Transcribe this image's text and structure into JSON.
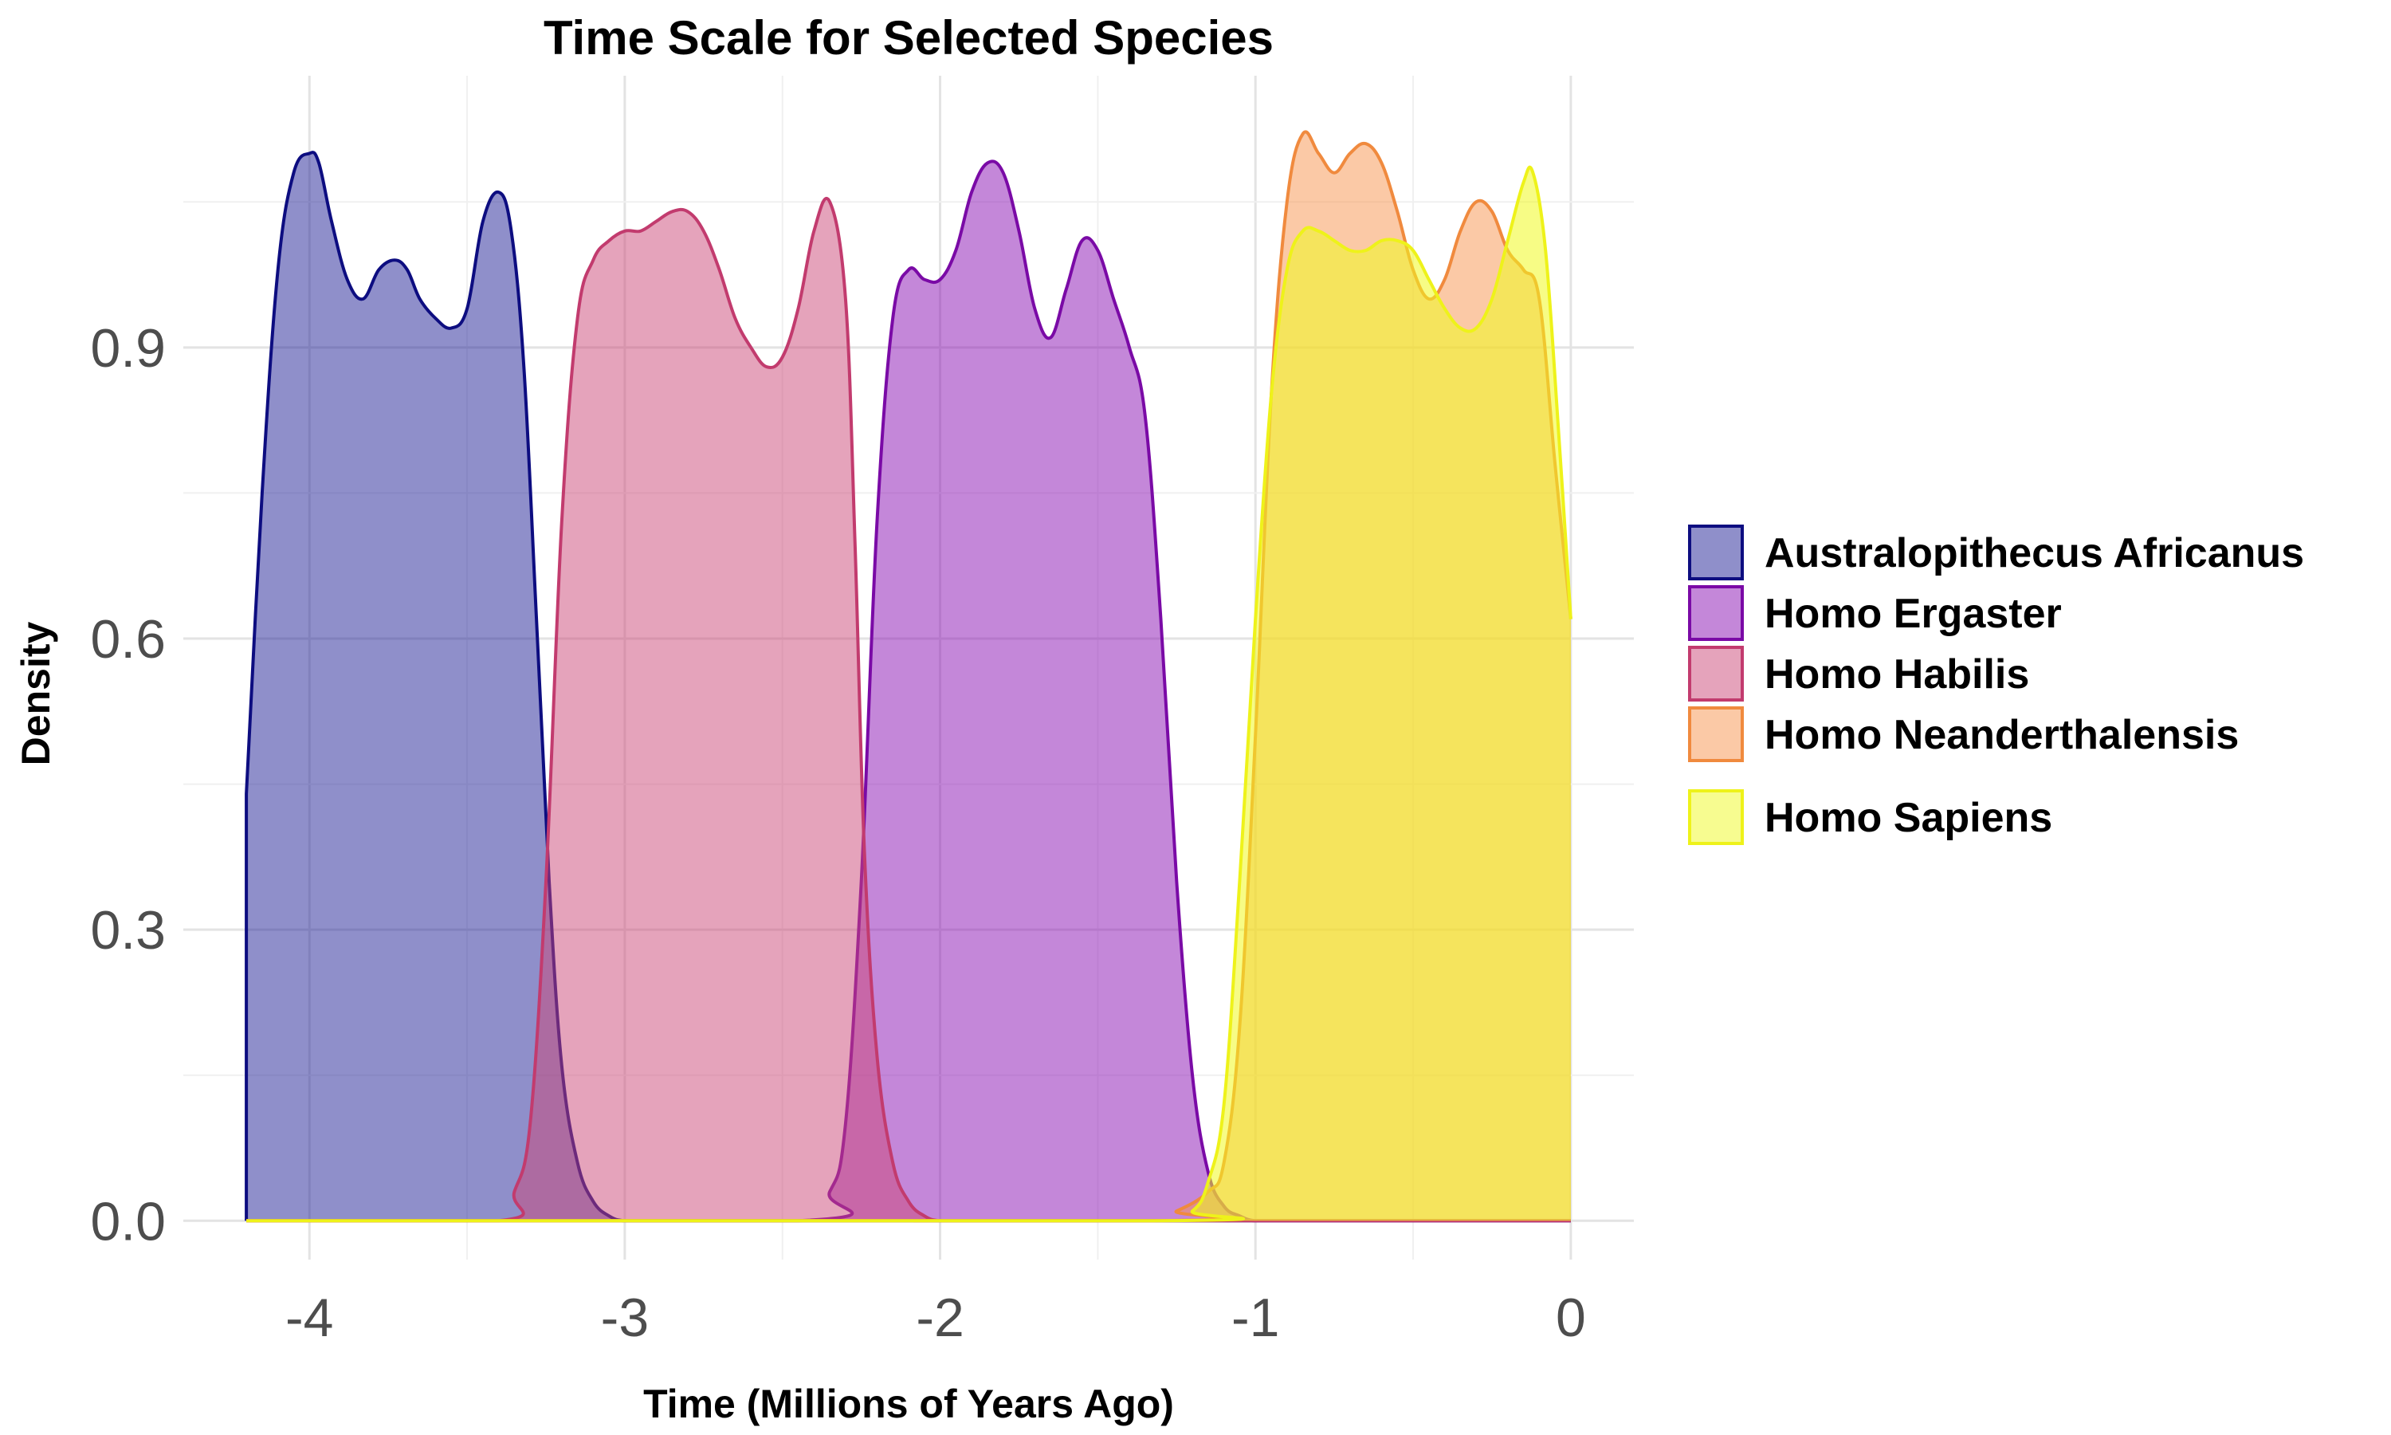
{
  "chart_data": {
    "type": "area",
    "title": "Time Scale for Selected Species",
    "xlabel": "Time (Millions of Years Ago)",
    "ylabel": "Density",
    "xlim": [
      -4.2,
      0
    ],
    "ylim": [
      0,
      1.1
    ],
    "x_ticks": [
      -4,
      -3,
      -2,
      -1,
      0
    ],
    "x_tick_labels": [
      "-4",
      "-3",
      "-2",
      "-1",
      "0"
    ],
    "y_ticks": [
      0.0,
      0.3,
      0.6,
      0.9
    ],
    "y_tick_labels": [
      "0.0",
      "0.3",
      "0.6",
      "0.9"
    ],
    "grid": true,
    "legend_position": "right",
    "series": [
      {
        "name": "Australopithecus Africanus",
        "fill": "#1f1f96",
        "stroke": "#0d0d80",
        "x": [
          -4.2,
          -4.15,
          -4.1,
          -4.05,
          -4.0,
          -3.97,
          -3.93,
          -3.88,
          -3.83,
          -3.78,
          -3.73,
          -3.69,
          -3.65,
          -3.6,
          -3.55,
          -3.5,
          -3.45,
          -3.4,
          -3.36,
          -3.32,
          -3.28,
          -3.24,
          -3.2,
          -3.15,
          -3.1,
          -3.05,
          -3.0,
          -2.9,
          -2.0,
          -1.0,
          0.0
        ],
        "y": [
          0.44,
          0.75,
          0.98,
          1.08,
          1.1,
          1.09,
          1.03,
          0.97,
          0.95,
          0.98,
          0.99,
          0.98,
          0.95,
          0.93,
          0.92,
          0.94,
          1.03,
          1.06,
          1.02,
          0.88,
          0.62,
          0.35,
          0.16,
          0.06,
          0.02,
          0.005,
          0.0,
          0.0,
          0.0,
          0.0,
          0.0
        ]
      },
      {
        "name": "Homo Ergaster",
        "fill": "#8a0fb3",
        "stroke": "#7a0aa6",
        "x": [
          -4.2,
          -2.45,
          -2.35,
          -2.3,
          -2.25,
          -2.2,
          -2.15,
          -2.1,
          -2.05,
          -2.0,
          -1.95,
          -1.9,
          -1.85,
          -1.8,
          -1.75,
          -1.7,
          -1.65,
          -1.6,
          -1.55,
          -1.5,
          -1.45,
          -1.4,
          -1.35,
          -1.3,
          -1.25,
          -1.2,
          -1.15,
          -1.1,
          -1.05,
          -1.0,
          -0.9,
          0.0
        ],
        "y": [
          0.0,
          0.0,
          0.03,
          0.1,
          0.35,
          0.72,
          0.93,
          0.98,
          0.97,
          0.97,
          1.0,
          1.06,
          1.09,
          1.08,
          1.02,
          0.94,
          0.91,
          0.96,
          1.01,
          1.0,
          0.95,
          0.9,
          0.83,
          0.62,
          0.35,
          0.15,
          0.05,
          0.015,
          0.005,
          0.0,
          0.0,
          0.0
        ]
      },
      {
        "name": "Homo Habilis",
        "fill": "#cc4778",
        "stroke": "#c23b6e",
        "x": [
          -4.2,
          -3.4,
          -3.35,
          -3.3,
          -3.25,
          -3.2,
          -3.15,
          -3.1,
          -3.05,
          -3.0,
          -2.95,
          -2.9,
          -2.85,
          -2.8,
          -2.75,
          -2.7,
          -2.65,
          -2.6,
          -2.55,
          -2.5,
          -2.45,
          -2.4,
          -2.35,
          -2.3,
          -2.27,
          -2.24,
          -2.2,
          -2.15,
          -2.1,
          -2.05,
          -2.0,
          -1.9,
          0.0
        ],
        "y": [
          0.0,
          0.0,
          0.03,
          0.1,
          0.35,
          0.72,
          0.93,
          0.99,
          1.01,
          1.02,
          1.02,
          1.03,
          1.04,
          1.04,
          1.02,
          0.98,
          0.93,
          0.9,
          0.88,
          0.89,
          0.94,
          1.02,
          1.05,
          0.95,
          0.7,
          0.38,
          0.17,
          0.06,
          0.02,
          0.005,
          0.0,
          0.0,
          0.0
        ]
      },
      {
        "name": "Homo Neanderthalensis",
        "fill": "#f7944d",
        "stroke": "#f08a3e",
        "x": [
          -4.2,
          -1.35,
          -1.25,
          -1.15,
          -1.1,
          -1.05,
          -1.0,
          -0.95,
          -0.9,
          -0.85,
          -0.8,
          -0.75,
          -0.7,
          -0.65,
          -0.6,
          -0.55,
          -0.5,
          -0.45,
          -0.4,
          -0.35,
          -0.3,
          -0.25,
          -0.2,
          -0.15,
          -0.1,
          -0.05,
          0.0
        ],
        "y": [
          0.0,
          0.0,
          0.01,
          0.03,
          0.06,
          0.2,
          0.5,
          0.85,
          1.05,
          1.12,
          1.1,
          1.08,
          1.1,
          1.11,
          1.09,
          1.04,
          0.98,
          0.95,
          0.97,
          1.02,
          1.05,
          1.04,
          1.0,
          0.98,
          0.95,
          0.78,
          0.62
        ]
      },
      {
        "name": "Homo Sapiens",
        "fill": "#f0f921",
        "stroke": "#eef21a",
        "x": [
          -4.2,
          -1.3,
          -1.2,
          -1.15,
          -1.1,
          -1.05,
          -1.0,
          -0.95,
          -0.9,
          -0.85,
          -0.8,
          -0.75,
          -0.7,
          -0.65,
          -0.6,
          -0.55,
          -0.5,
          -0.45,
          -0.4,
          -0.35,
          -0.3,
          -0.25,
          -0.2,
          -0.15,
          -0.12,
          -0.08,
          -0.04,
          0.0
        ],
        "y": [
          0.0,
          0.0,
          0.01,
          0.04,
          0.12,
          0.35,
          0.62,
          0.85,
          0.98,
          1.02,
          1.02,
          1.01,
          1.0,
          1.0,
          1.01,
          1.01,
          1.0,
          0.97,
          0.94,
          0.92,
          0.92,
          0.95,
          1.01,
          1.07,
          1.08,
          1.0,
          0.82,
          0.62
        ]
      }
    ]
  }
}
